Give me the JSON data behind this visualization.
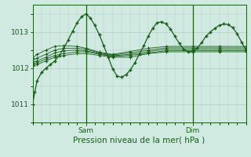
{
  "bg_color": "#d0eae2",
  "grid_color": "#b0ccc4",
  "line_color": "#1a5c1a",
  "xlabel": "Pression niveau de la mer( hPa )",
  "xlabel_fontsize": 7.5,
  "yticks": [
    1011,
    1012,
    1013
  ],
  "ylim": [
    1010.5,
    1013.75
  ],
  "xlim": [
    0,
    48
  ],
  "xtick_positions": [
    12,
    36
  ],
  "xtick_labels": [
    "Sam",
    "Dim"
  ],
  "vlines": [
    12,
    36
  ],
  "ensemble": [
    {
      "knots_x": [
        0,
        1,
        3,
        5,
        7,
        10,
        12,
        15,
        18,
        22,
        26,
        30,
        36,
        42,
        48
      ],
      "knots_y": [
        1012.05,
        1012.1,
        1012.2,
        1012.3,
        1012.35,
        1012.4,
        1012.4,
        1012.35,
        1012.3,
        1012.3,
        1012.4,
        1012.45,
        1012.45,
        1012.45,
        1012.45
      ]
    },
    {
      "knots_x": [
        0,
        1,
        3,
        5,
        7,
        10,
        12,
        15,
        18,
        22,
        26,
        30,
        36,
        42,
        48
      ],
      "knots_y": [
        1012.1,
        1012.15,
        1012.25,
        1012.35,
        1012.4,
        1012.45,
        1012.45,
        1012.38,
        1012.32,
        1012.35,
        1012.42,
        1012.48,
        1012.48,
        1012.48,
        1012.48
      ]
    },
    {
      "knots_x": [
        0,
        1,
        3,
        5,
        7,
        10,
        12,
        15,
        18,
        22,
        26,
        30,
        36,
        42,
        48
      ],
      "knots_y": [
        1012.15,
        1012.2,
        1012.3,
        1012.42,
        1012.48,
        1012.5,
        1012.48,
        1012.4,
        1012.34,
        1012.38,
        1012.46,
        1012.52,
        1012.52,
        1012.52,
        1012.52
      ]
    },
    {
      "knots_x": [
        0,
        1,
        3,
        5,
        7,
        10,
        12,
        15,
        18,
        22,
        26,
        30,
        36,
        42,
        48
      ],
      "knots_y": [
        1012.2,
        1012.28,
        1012.38,
        1012.5,
        1012.55,
        1012.55,
        1012.52,
        1012.42,
        1012.36,
        1012.42,
        1012.5,
        1012.56,
        1012.56,
        1012.56,
        1012.56
      ]
    },
    {
      "knots_x": [
        0,
        1,
        3,
        5,
        7,
        10,
        12,
        15,
        18,
        22,
        26,
        30,
        36,
        42,
        48
      ],
      "knots_y": [
        1012.28,
        1012.38,
        1012.5,
        1012.6,
        1012.62,
        1012.6,
        1012.55,
        1012.44,
        1012.38,
        1012.46,
        1012.55,
        1012.6,
        1012.6,
        1012.6,
        1012.6
      ]
    }
  ],
  "main_knots_x": [
    0,
    0.5,
    1,
    2,
    3,
    4,
    5,
    6,
    7,
    8,
    9,
    10,
    11,
    12,
    13,
    14,
    15,
    16,
    17,
    18,
    19,
    20,
    21,
    22,
    23,
    24,
    25,
    26,
    27,
    28,
    29,
    30,
    31,
    32,
    33,
    34,
    35,
    36,
    37,
    38,
    39,
    40,
    41,
    42,
    43,
    44,
    45,
    46,
    47,
    48
  ],
  "main_knots_y": [
    1011.0,
    1011.35,
    1011.65,
    1011.88,
    1012.0,
    1012.1,
    1012.2,
    1012.35,
    1012.55,
    1012.78,
    1013.02,
    1013.25,
    1013.42,
    1013.5,
    1013.38,
    1013.18,
    1012.92,
    1012.62,
    1012.3,
    1011.98,
    1011.78,
    1011.75,
    1011.82,
    1011.95,
    1012.15,
    1012.38,
    1012.62,
    1012.88,
    1013.1,
    1013.25,
    1013.28,
    1013.22,
    1013.08,
    1012.88,
    1012.68,
    1012.52,
    1012.45,
    1012.45,
    1012.55,
    1012.7,
    1012.88,
    1013.0,
    1013.1,
    1013.18,
    1013.22,
    1013.2,
    1013.12,
    1012.95,
    1012.72,
    1012.5
  ]
}
